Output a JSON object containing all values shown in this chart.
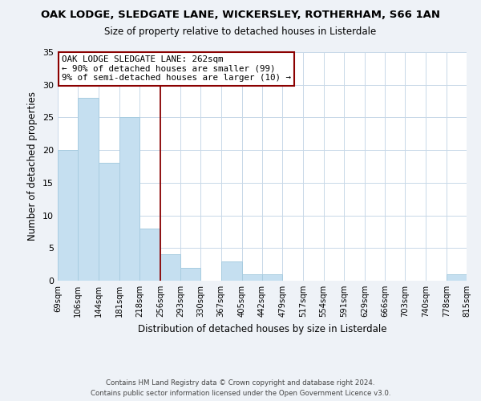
{
  "title": "OAK LODGE, SLEDGATE LANE, WICKERSLEY, ROTHERHAM, S66 1AN",
  "subtitle": "Size of property relative to detached houses in Listerdale",
  "xlabel": "Distribution of detached houses by size in Listerdale",
  "ylabel": "Number of detached properties",
  "bar_color": "#c5dff0",
  "bar_edge_color": "#a8cce0",
  "bin_edges": [
    69,
    106,
    144,
    181,
    218,
    256,
    293,
    330,
    367,
    405,
    442,
    479,
    517,
    554,
    591,
    629,
    666,
    703,
    740,
    778,
    815
  ],
  "bin_labels": [
    "69sqm",
    "106sqm",
    "144sqm",
    "181sqm",
    "218sqm",
    "256sqm",
    "293sqm",
    "330sqm",
    "367sqm",
    "405sqm",
    "442sqm",
    "479sqm",
    "517sqm",
    "554sqm",
    "591sqm",
    "629sqm",
    "666sqm",
    "703sqm",
    "740sqm",
    "778sqm",
    "815sqm"
  ],
  "bar_heights": [
    20,
    28,
    18,
    25,
    8,
    4,
    2,
    0,
    3,
    1,
    1,
    0,
    0,
    0,
    0,
    0,
    0,
    0,
    0,
    1
  ],
  "property_line_x": 256,
  "property_label": "OAK LODGE SLEDGATE LANE: 262sqm",
  "annotation_line1": "← 90% of detached houses are smaller (99)",
  "annotation_line2": "9% of semi-detached houses are larger (10) →",
  "ylim": [
    0,
    35
  ],
  "yticks": [
    0,
    5,
    10,
    15,
    20,
    25,
    30,
    35
  ],
  "footer1": "Contains HM Land Registry data © Crown copyright and database right 2024.",
  "footer2": "Contains public sector information licensed under the Open Government Licence v3.0.",
  "background_color": "#eef2f7",
  "plot_bg_color": "#ffffff",
  "grid_color": "#c8d8e8"
}
